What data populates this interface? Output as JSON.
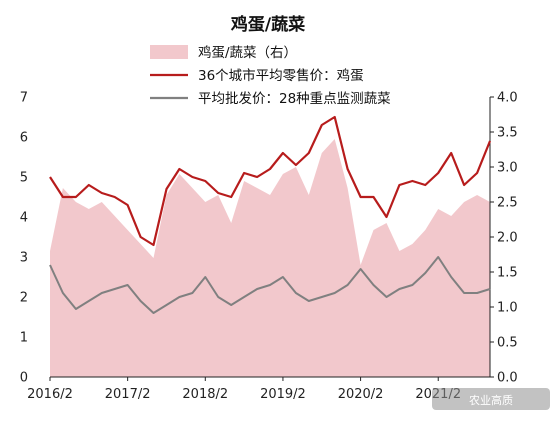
{
  "chart_data": {
    "type": "area",
    "title": "鸡蛋/蔬菜",
    "x_ticks": [
      "2016/2",
      "2017/2",
      "2018/2",
      "2019/2",
      "2020/2",
      "2021/2"
    ],
    "x_range": [
      "2016/2",
      "2021/10"
    ],
    "left_axis": {
      "ylim": [
        0,
        7
      ],
      "ticks": [
        "0",
        "1",
        "2",
        "3",
        "4",
        "5",
        "6",
        "7"
      ]
    },
    "right_axis": {
      "ylim": [
        0,
        4
      ],
      "ticks": [
        "0.0",
        "0.5",
        "1.0",
        "1.5",
        "2.0",
        "2.5",
        "3.0",
        "3.5",
        "4.0"
      ]
    },
    "grid": false,
    "legend_position": "top",
    "series": [
      {
        "name": "鸡蛋/蔬菜（右）",
        "kind": "area",
        "axis": "right",
        "color": "#f2c8cc",
        "x": [
          "2016/2",
          "2016/4",
          "2016/6",
          "2016/8",
          "2016/10",
          "2016/12",
          "2017/2",
          "2017/4",
          "2017/6",
          "2017/8",
          "2017/10",
          "2017/12",
          "2018/2",
          "2018/4",
          "2018/6",
          "2018/8",
          "2018/10",
          "2018/12",
          "2019/2",
          "2019/4",
          "2019/6",
          "2019/8",
          "2019/10",
          "2019/12",
          "2020/2",
          "2020/4",
          "2020/6",
          "2020/8",
          "2020/10",
          "2020/12",
          "2021/2",
          "2021/4",
          "2021/6",
          "2021/8",
          "2021/10"
        ],
        "values": [
          1.8,
          2.7,
          2.5,
          2.4,
          2.5,
          2.3,
          2.1,
          1.9,
          1.7,
          2.6,
          2.9,
          2.7,
          2.5,
          2.6,
          2.2,
          2.8,
          2.7,
          2.6,
          2.9,
          3.0,
          2.6,
          3.2,
          3.4,
          2.7,
          1.6,
          2.1,
          2.2,
          1.8,
          1.9,
          2.1,
          2.4,
          2.3,
          2.5,
          2.6,
          2.5
        ]
      },
      {
        "name": "36个城市平均零售价：鸡蛋",
        "kind": "line",
        "axis": "left",
        "color": "#b71c1c",
        "x": [
          "2016/2",
          "2016/4",
          "2016/6",
          "2016/8",
          "2016/10",
          "2016/12",
          "2017/2",
          "2017/4",
          "2017/6",
          "2017/8",
          "2017/10",
          "2017/12",
          "2018/2",
          "2018/4",
          "2018/6",
          "2018/8",
          "2018/10",
          "2018/12",
          "2019/2",
          "2019/4",
          "2019/6",
          "2019/8",
          "2019/10",
          "2019/12",
          "2020/2",
          "2020/4",
          "2020/6",
          "2020/8",
          "2020/10",
          "2020/12",
          "2021/2",
          "2021/4",
          "2021/6",
          "2021/8",
          "2021/10"
        ],
        "values": [
          5.0,
          4.5,
          4.5,
          4.8,
          4.6,
          4.5,
          4.3,
          3.5,
          3.3,
          4.7,
          5.2,
          5.0,
          4.9,
          4.6,
          4.5,
          5.1,
          5.0,
          5.2,
          5.6,
          5.3,
          5.6,
          6.3,
          6.5,
          5.2,
          4.5,
          4.5,
          4.0,
          4.8,
          4.9,
          4.8,
          5.1,
          5.6,
          4.8,
          5.1,
          5.9
        ]
      },
      {
        "name": "平均批发价：28种重点监测蔬菜",
        "kind": "line",
        "axis": "left",
        "color": "#808080",
        "x": [
          "2016/2",
          "2016/4",
          "2016/6",
          "2016/8",
          "2016/10",
          "2016/12",
          "2017/2",
          "2017/4",
          "2017/6",
          "2017/8",
          "2017/10",
          "2017/12",
          "2018/2",
          "2018/4",
          "2018/6",
          "2018/8",
          "2018/10",
          "2018/12",
          "2019/2",
          "2019/4",
          "2019/6",
          "2019/8",
          "2019/10",
          "2019/12",
          "2020/2",
          "2020/4",
          "2020/6",
          "2020/8",
          "2020/10",
          "2020/12",
          "2021/2",
          "2021/4",
          "2021/6",
          "2021/8",
          "2021/10"
        ],
        "values": [
          2.8,
          2.1,
          1.7,
          1.9,
          2.1,
          2.2,
          2.3,
          1.9,
          1.6,
          1.8,
          2.0,
          2.1,
          2.5,
          2.0,
          1.8,
          2.0,
          2.2,
          2.3,
          2.5,
          2.1,
          1.9,
          2.0,
          2.1,
          2.3,
          2.7,
          2.3,
          2.0,
          2.2,
          2.3,
          2.6,
          3.0,
          2.5,
          2.1,
          2.1,
          2.2
        ]
      }
    ]
  },
  "watermark": "农业高质"
}
